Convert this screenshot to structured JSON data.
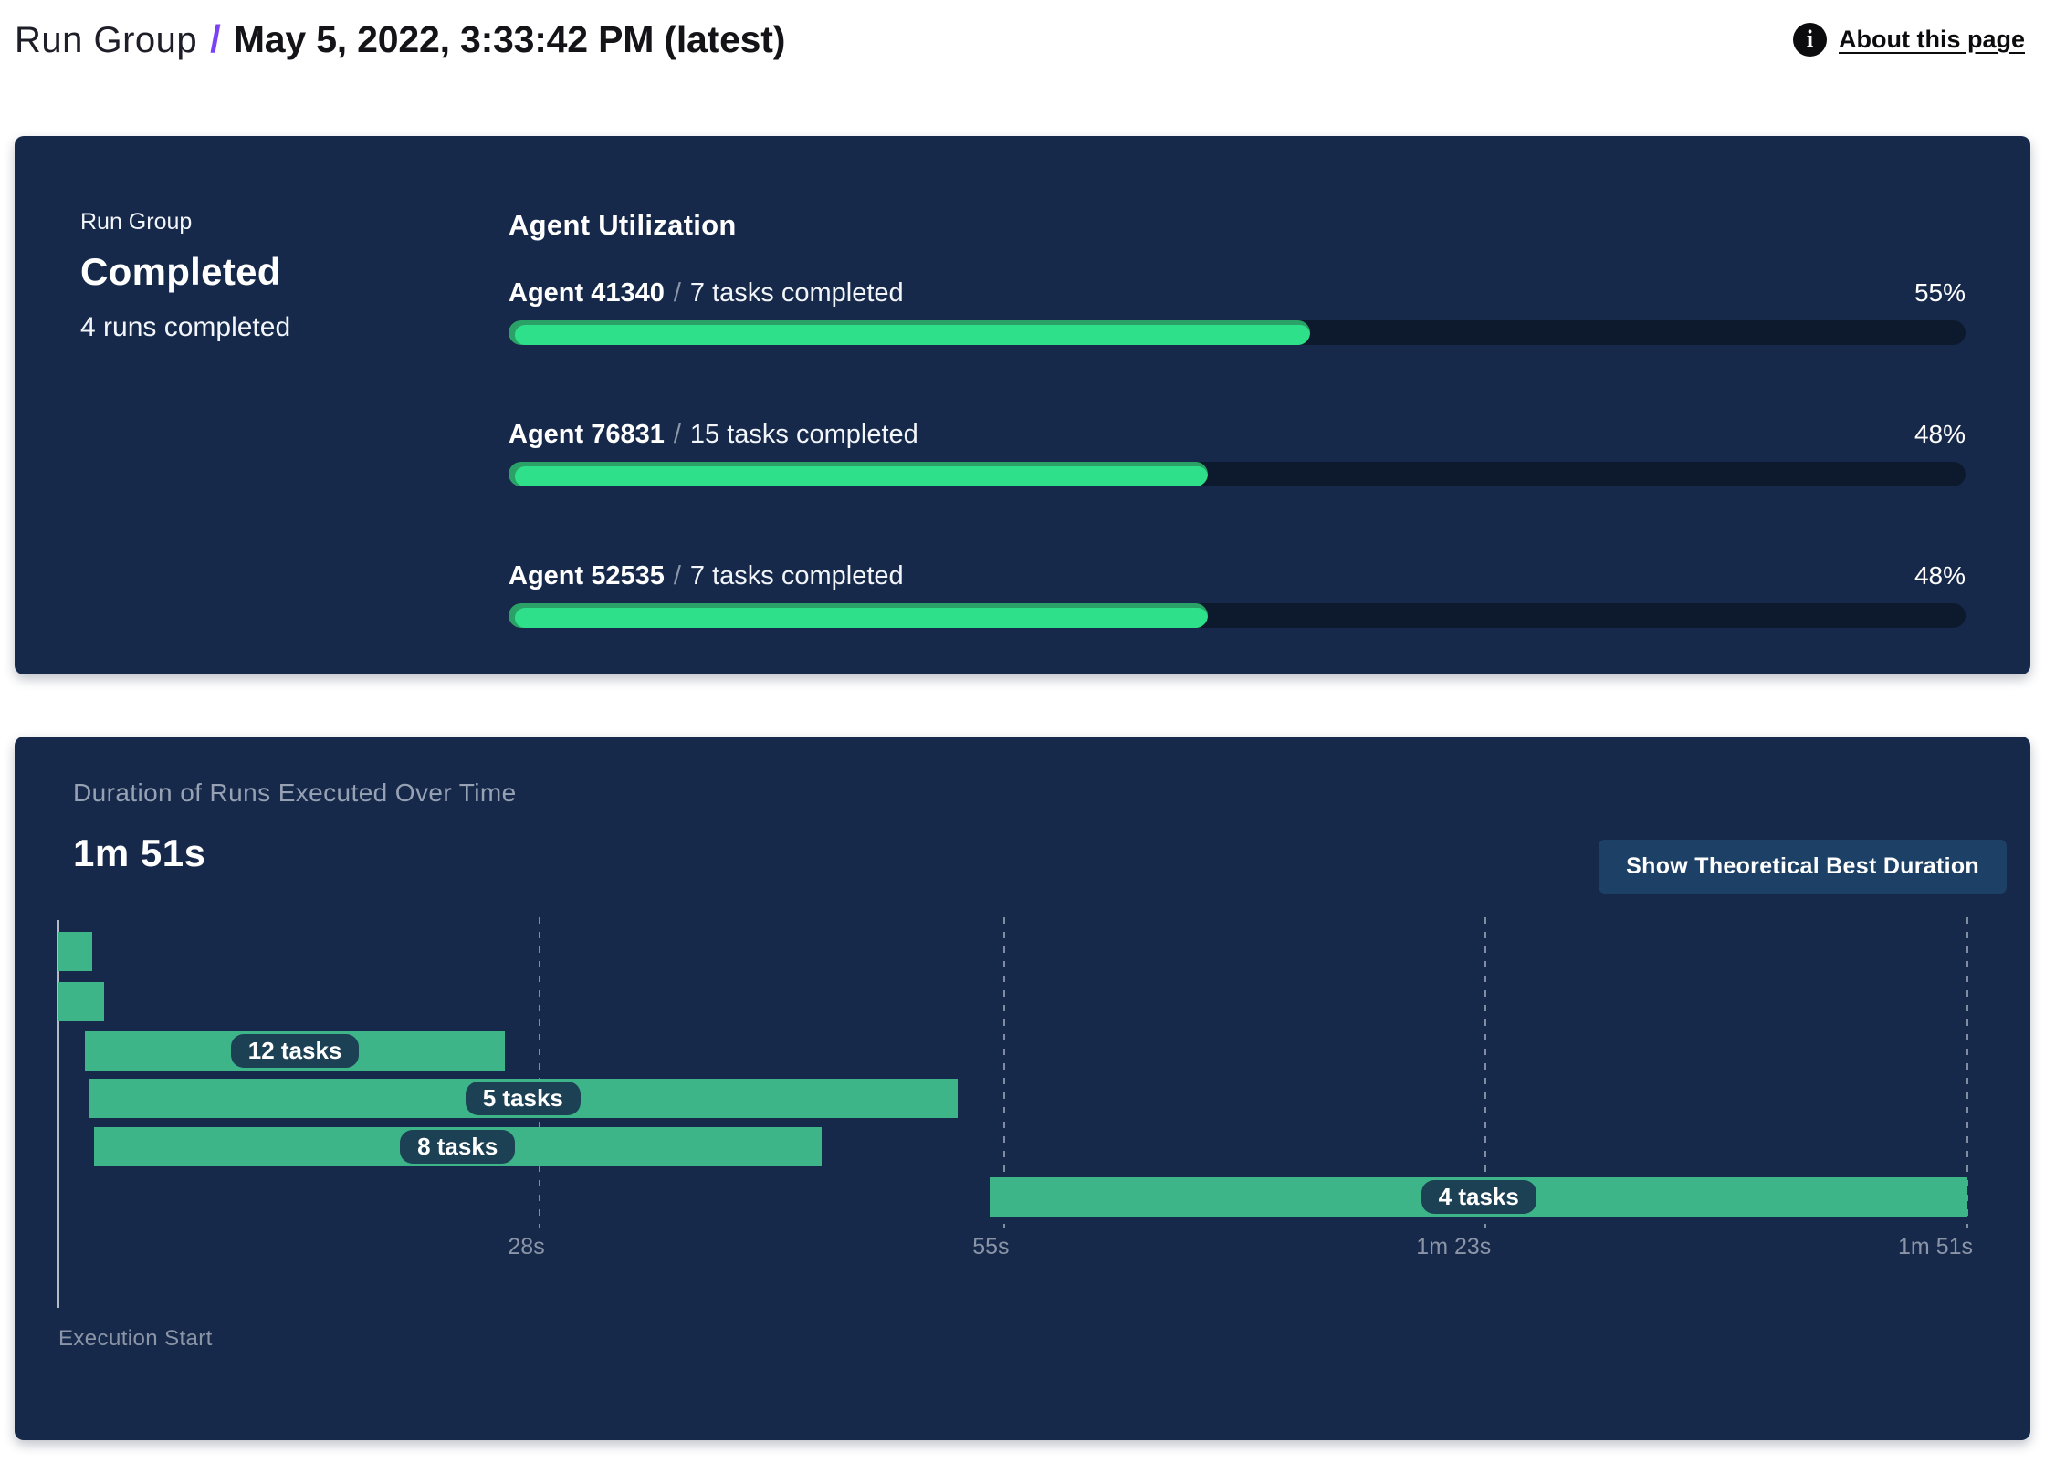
{
  "header": {
    "breadcrumb_root": "Run Group",
    "separator": "/",
    "title": "May 5, 2022, 3:33:42 PM (latest)",
    "about_link": "About this page",
    "info_icon_glyph": "i"
  },
  "summary": {
    "label": "Run Group",
    "status": "Completed",
    "runs_completed": "4 runs completed"
  },
  "agent_utilization": {
    "title": "Agent Utilization",
    "separator": "/",
    "agents": [
      {
        "name": "Agent 41340",
        "tasks": "7 tasks completed",
        "percent": 55,
        "percent_label": "55%"
      },
      {
        "name": "Agent 76831",
        "tasks": "15 tasks completed",
        "percent": 48,
        "percent_label": "48%"
      },
      {
        "name": "Agent 52535",
        "tasks": "7 tasks completed",
        "percent": 48,
        "percent_label": "48%"
      }
    ]
  },
  "duration_panel": {
    "title": "Duration of Runs Executed Over Time",
    "total_duration": "1m 51s",
    "button_label": "Show Theoretical Best Duration",
    "axis_origin_label": "Execution Start"
  },
  "chart_data": {
    "type": "gantt",
    "title": "Duration of Runs Executed Over Time",
    "total_duration_seconds": 111,
    "x_axis": {
      "unit": "seconds",
      "min": 0,
      "max": 111,
      "ticks": [
        {
          "label": "28s",
          "t": 28
        },
        {
          "label": "55s",
          "t": 55
        },
        {
          "label": "1m 23s",
          "t": 83
        },
        {
          "label": "1m 51s",
          "t": 111
        }
      ]
    },
    "bars": [
      {
        "label": "",
        "start": 0,
        "end": 2.0
      },
      {
        "label": "",
        "start": 0,
        "end": 2.7
      },
      {
        "label": "12 tasks",
        "start": 1.6,
        "end": 26.0
      },
      {
        "label": "5 tasks",
        "start": 1.8,
        "end": 52.3
      },
      {
        "label": "8 tasks",
        "start": 2.1,
        "end": 44.4
      },
      {
        "label": "4 tasks",
        "start": 54.2,
        "end": 111
      }
    ]
  },
  "colors": {
    "panel_bg": "#16294a",
    "progress_fill": "#2ee08a",
    "progress_fill_edge": "#2aa267",
    "progress_track": "#0d1a2e",
    "gantt_bar": "#3eb489",
    "pill_bg": "#1d4154",
    "accent_purple": "#7a42f7",
    "muted_text": "#8b95a7"
  }
}
